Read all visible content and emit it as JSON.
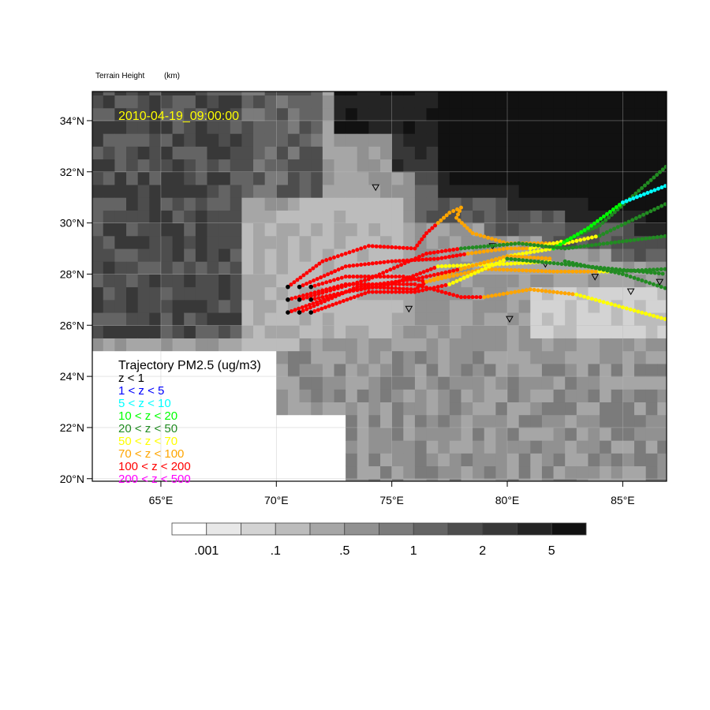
{
  "title": "Terrain Height",
  "units": "(km)",
  "timestamp": "2010-04-19_09:00:00",
  "timestamp_color": "#ffff00",
  "map": {
    "lon_range": [
      62.03,
      86.9
    ],
    "lat_range": [
      19.9,
      35.14
    ],
    "lon_ticks": [
      {
        "v": 65,
        "label": "65°E"
      },
      {
        "v": 70,
        "label": "70°E"
      },
      {
        "v": 75,
        "label": "75°E"
      },
      {
        "v": 80,
        "label": "80°E"
      },
      {
        "v": 85,
        "label": "85°E"
      }
    ],
    "lat_ticks": [
      {
        "v": 20,
        "label": "20°N"
      },
      {
        "v": 22,
        "label": "22°N"
      },
      {
        "v": 24,
        "label": "24°N"
      },
      {
        "v": 26,
        "label": "26°N"
      },
      {
        "v": 28,
        "label": "28°N"
      },
      {
        "v": 30,
        "label": "30°N"
      },
      {
        "v": 32,
        "label": "32°N"
      },
      {
        "v": 34,
        "label": "34°N"
      }
    ]
  },
  "colorbar": {
    "colors": [
      "#ffffff",
      "#e8e8e8",
      "#d3d3d3",
      "#bcbcbc",
      "#a6a6a6",
      "#919191",
      "#7b7b7b",
      "#646464",
      "#4d4d4d",
      "#383838",
      "#242424",
      "#111111"
    ],
    "labels": [
      {
        "after": 1,
        "text": ".001"
      },
      {
        "after": 3,
        "text": ".1"
      },
      {
        "after": 5,
        "text": ".5"
      },
      {
        "after": 7,
        "text": "1"
      },
      {
        "after": 9,
        "text": "2"
      },
      {
        "after": 11,
        "text": "5"
      }
    ]
  },
  "legend": {
    "title": "Trajectory PM2.5 (ug/m3)",
    "items": [
      {
        "label": "z < 1",
        "color": "#000000"
      },
      {
        "label": "1 < z < 5",
        "color": "#0000ff"
      },
      {
        "label": "5 < z < 10",
        "color": "#00ffff"
      },
      {
        "label": "10 < z < 20",
        "color": "#00ff00"
      },
      {
        "label": "20 < z < 50",
        "color": "#228b22"
      },
      {
        "label": "50 < z < 70",
        "color": "#ffff00"
      },
      {
        "label": "70 < z < 100",
        "color": "#ffa500"
      },
      {
        "label": "100 < z < 200",
        "color": "#ff0000"
      },
      {
        "label": "200 < z < 500",
        "color": "#ff00ff"
      }
    ]
  },
  "stations": [
    [
      74.3,
      31.4
    ],
    [
      79.36,
      29.1
    ],
    [
      75.74,
      26.65
    ],
    [
      80.1,
      26.25
    ],
    [
      81.65,
      28.4
    ],
    [
      83.8,
      27.9
    ],
    [
      85.35,
      27.33
    ],
    [
      86.6,
      27.7
    ]
  ],
  "trajectories": [
    [
      {
        "c": "#ff0000",
        "p": [
          [
            70.5,
            27.5
          ],
          [
            72,
            28.5
          ],
          [
            74,
            29.1
          ],
          [
            76,
            29.0
          ],
          [
            76.5,
            29.6
          ],
          [
            77,
            30.0
          ]
        ]
      },
      {
        "c": "#ffa500",
        "p": [
          [
            77,
            30.0
          ],
          [
            77.5,
            30.4
          ],
          [
            78,
            30.6
          ],
          [
            77.8,
            30.2
          ],
          [
            78.5,
            29.6
          ],
          [
            80,
            29.2
          ],
          [
            81.5,
            29.2
          ],
          [
            82.5,
            29.2
          ]
        ]
      },
      {
        "c": "#ffff00",
        "p": [
          [
            82.5,
            29.2
          ],
          [
            84,
            29.5
          ]
        ]
      },
      {
        "c": "#228b22",
        "p": [
          [
            84,
            29.5
          ],
          [
            87,
            30.8
          ]
        ]
      }
    ],
    [
      {
        "c": "#ff0000",
        "p": [
          [
            71,
            27.5
          ],
          [
            73,
            28.3
          ],
          [
            75,
            28.5
          ],
          [
            77,
            28.6
          ],
          [
            78.3,
            28.8
          ]
        ]
      },
      {
        "c": "#ffa500",
        "p": [
          [
            78.3,
            28.8
          ],
          [
            80,
            29
          ],
          [
            81,
            29
          ]
        ]
      },
      {
        "c": "#ffff00",
        "p": [
          [
            81,
            29
          ],
          [
            82.5,
            29.3
          ]
        ]
      },
      {
        "c": "#228b22",
        "p": [
          [
            82.5,
            29.3
          ],
          [
            84,
            29.9
          ],
          [
            87,
            32.3
          ]
        ]
      }
    ],
    [
      {
        "c": "#ff0000",
        "p": [
          [
            71.5,
            27.5
          ],
          [
            73,
            27.9
          ],
          [
            75.5,
            27.9
          ],
          [
            76.5,
            27.7
          ]
        ]
      },
      {
        "c": "#ffa500",
        "p": [
          [
            76.5,
            27.7
          ],
          [
            78,
            28.2
          ]
        ]
      },
      {
        "c": "#ffff00",
        "p": [
          [
            78,
            28.2
          ],
          [
            80,
            28.7
          ],
          [
            82,
            29.0
          ]
        ]
      },
      {
        "c": "#00ff00",
        "p": [
          [
            82,
            29.0
          ],
          [
            83.5,
            29.8
          ],
          [
            85,
            30.8
          ]
        ]
      },
      {
        "c": "#00ffff",
        "p": [
          [
            85,
            30.8
          ],
          [
            87,
            31.5
          ]
        ]
      }
    ],
    [
      {
        "c": "#ff0000",
        "p": [
          [
            70.5,
            27.0
          ],
          [
            73,
            27.6
          ],
          [
            76,
            27.6
          ],
          [
            78,
            27.1
          ],
          [
            79,
            27.1
          ]
        ]
      },
      {
        "c": "#ffa500",
        "p": [
          [
            79,
            27.1
          ],
          [
            81,
            27.4
          ],
          [
            83,
            27.2
          ]
        ]
      },
      {
        "c": "#ffff00",
        "p": [
          [
            83,
            27.2
          ],
          [
            87,
            26.2
          ]
        ]
      }
    ],
    [
      {
        "c": "#ff0000",
        "p": [
          [
            71,
            27.0
          ],
          [
            74,
            27.8
          ],
          [
            76.5,
            28.8
          ],
          [
            78,
            29.0
          ]
        ]
      },
      {
        "c": "#228b22",
        "p": [
          [
            78,
            29.0
          ],
          [
            80.5,
            29.2
          ],
          [
            82.5,
            29.0
          ],
          [
            87,
            29.5
          ]
        ]
      }
    ],
    [
      {
        "c": "#ff0000",
        "p": [
          [
            71.5,
            27.0
          ],
          [
            74,
            27.5
          ],
          [
            76,
            27.4
          ],
          [
            76.5,
            27.7
          ]
        ]
      },
      {
        "c": "#ffa500",
        "p": [
          [
            76.5,
            27.7
          ],
          [
            79,
            28.2
          ],
          [
            82,
            28.1
          ],
          [
            84,
            28.1
          ]
        ]
      },
      {
        "c": "#ffff00",
        "p": [
          [
            84,
            28.1
          ],
          [
            84.5,
            28.1
          ]
        ]
      },
      {
        "c": "#228b22",
        "p": [
          [
            84.5,
            28.1
          ],
          [
            87,
            28.2
          ]
        ]
      }
    ],
    [
      {
        "c": "#ff0000",
        "p": [
          [
            70.5,
            26.5
          ],
          [
            73,
            27.3
          ],
          [
            75,
            27.6
          ],
          [
            77,
            28.3
          ]
        ]
      },
      {
        "c": "#ffff00",
        "p": [
          [
            77,
            28.3
          ],
          [
            80,
            28.4
          ],
          [
            82,
            28.5
          ]
        ]
      },
      {
        "c": "#228b22",
        "p": [
          [
            82.5,
            28.5
          ],
          [
            85,
            28.0
          ],
          [
            87,
            27.4
          ]
        ]
      }
    ],
    [
      {
        "c": "#ff0000",
        "p": [
          [
            71,
            26.5
          ],
          [
            73.5,
            27.5
          ],
          [
            76,
            27.8
          ],
          [
            78,
            28.2
          ]
        ]
      },
      {
        "c": "#ffa500",
        "p": [
          [
            78,
            28.2
          ],
          [
            80,
            28.7
          ],
          [
            82,
            28.6
          ]
        ]
      }
    ],
    [
      {
        "c": "#ff0000",
        "p": [
          [
            71.5,
            26.5
          ],
          [
            74,
            27.3
          ],
          [
            76,
            27.3
          ],
          [
            77.5,
            27.6
          ]
        ]
      },
      {
        "c": "#ffff00",
        "p": [
          [
            77.5,
            27.6
          ],
          [
            80,
            28.6
          ]
        ]
      },
      {
        "c": "#228b22",
        "p": [
          [
            80,
            28.6
          ],
          [
            86.9,
            28.0
          ]
        ]
      }
    ]
  ]
}
